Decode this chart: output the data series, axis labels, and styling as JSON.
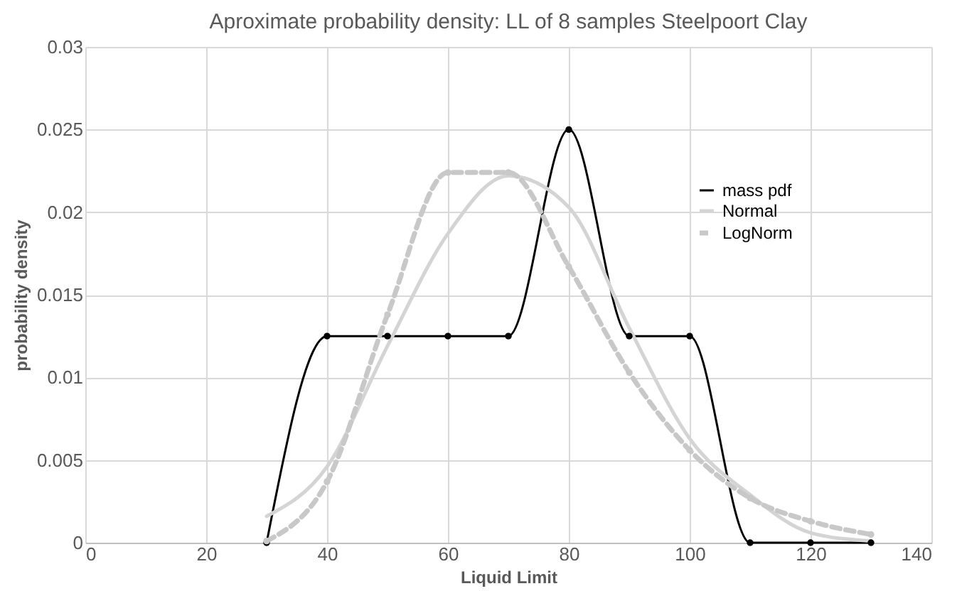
{
  "chart_data": {
    "type": "line",
    "title": "Aproximate probability density: LL of 8 samples Steelpoort Clay",
    "xlabel": "Liquid Limit",
    "ylabel": "probability density",
    "x": [
      30,
      40,
      50,
      60,
      70,
      80,
      90,
      100,
      110,
      120,
      130
    ],
    "series": [
      {
        "name": "mass pdf",
        "color": "#000000",
        "marker": "circle",
        "line_style": "solid",
        "values": [
          0,
          0.0125,
          0.0125,
          0.0125,
          0.0125,
          0.025,
          0.0125,
          0.0125,
          0,
          0,
          0
        ]
      },
      {
        "name": "Normal",
        "color": "#d4d4d4",
        "marker": "none",
        "line_style": "solid",
        "values": [
          0.0016,
          0.0046,
          0.0119,
          0.0187,
          0.0222,
          0.0203,
          0.013,
          0.0063,
          0.0029,
          0.0006,
          0.0001
        ]
      },
      {
        "name": "LogNorm",
        "color": "#c8c8c8",
        "marker": "circle",
        "line_style": "dashed",
        "values": [
          0.0001,
          0.0037,
          0.0138,
          0.0224,
          0.0224,
          0.0167,
          0.0103,
          0.0056,
          0.0027,
          0.0013,
          0.0005
        ]
      }
    ],
    "xlim": [
      0,
      140
    ],
    "xticks": [
      0,
      20,
      40,
      60,
      80,
      100,
      120,
      140
    ],
    "ylim": [
      0,
      0.03
    ],
    "yticks": [
      0,
      0.005,
      0.01,
      0.015,
      0.02,
      0.025,
      0.03
    ],
    "grid": true,
    "legend": "right"
  }
}
